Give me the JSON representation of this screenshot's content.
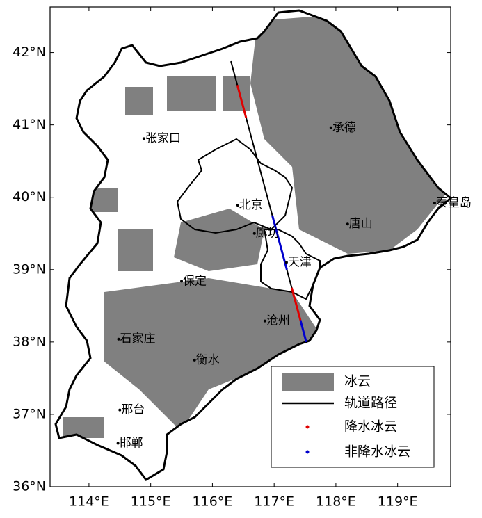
{
  "map": {
    "xlim": [
      113.37,
      119.86
    ],
    "ylim": [
      36,
      42.63
    ],
    "xticks": [
      {
        "value": 114,
        "label": "114°E"
      },
      {
        "value": 115,
        "label": "115°E"
      },
      {
        "value": 116,
        "label": "116°E"
      },
      {
        "value": 117,
        "label": "117°E"
      },
      {
        "value": 118,
        "label": "118°E"
      },
      {
        "value": 119,
        "label": "119°E"
      }
    ],
    "yticks": [
      {
        "value": 36,
        "label": "36°N"
      },
      {
        "value": 37,
        "label": "37°N"
      },
      {
        "value": 38,
        "label": "38°N"
      },
      {
        "value": 39,
        "label": "39°N"
      },
      {
        "value": 40,
        "label": "40°N"
      },
      {
        "value": 41,
        "label": "41°N"
      },
      {
        "value": 42,
        "label": "42°N"
      }
    ],
    "cities": [
      {
        "name": "张家口",
        "lon": 114.89,
        "lat": 40.81
      },
      {
        "name": "承德",
        "lon": 117.92,
        "lat": 40.96
      },
      {
        "name": "北京",
        "lon": 116.41,
        "lat": 39.89
      },
      {
        "name": "廊坊",
        "lon": 116.68,
        "lat": 39.5
      },
      {
        "name": "天津",
        "lon": 117.2,
        "lat": 39.1
      },
      {
        "name": "唐山",
        "lon": 118.19,
        "lat": 39.63
      },
      {
        "name": "秦皇岛",
        "lon": 119.6,
        "lat": 39.92
      },
      {
        "name": "保定",
        "lon": 115.5,
        "lat": 38.84
      },
      {
        "name": "沧州",
        "lon": 116.85,
        "lat": 38.29
      },
      {
        "name": "石家庄",
        "lon": 114.48,
        "lat": 38.04
      },
      {
        "name": "衡水",
        "lon": 115.71,
        "lat": 37.75
      },
      {
        "name": "邢台",
        "lon": 114.5,
        "lat": 37.06
      },
      {
        "name": "邯郸",
        "lon": 114.47,
        "lat": 36.6
      }
    ],
    "track": {
      "lon": [
        116.3,
        117.52
      ],
      "lat": [
        41.88,
        38.0
      ]
    },
    "legend": [
      {
        "label": "冰云",
        "color": "#808080"
      },
      {
        "label": "轨道路径",
        "color": "#000000"
      },
      {
        "label": "降水冰云",
        "color": "#e00000",
        "lat_ranges": [
          [
            41.55,
            41.1
          ],
          [
            38.75,
            38.3
          ]
        ]
      },
      {
        "label": "非降水冰云",
        "color": "#0000cc",
        "lat_ranges": [
          [
            39.75,
            39.0
          ],
          [
            38.3,
            38.0
          ]
        ]
      }
    ]
  }
}
